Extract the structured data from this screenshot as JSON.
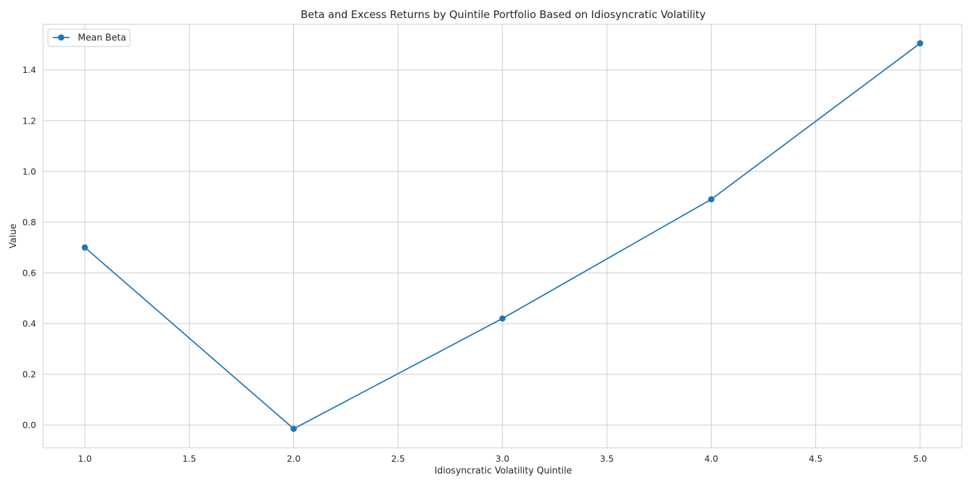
{
  "chart_data": {
    "type": "line",
    "title": "Beta and Excess Returns by Quintile Portfolio Based on Idiosyncratic Volatility",
    "xlabel": "Idiosyncratic Volatility Quintile",
    "ylabel": "Value",
    "xlim": [
      0.8,
      5.2
    ],
    "ylim": [
      -0.09,
      1.58
    ],
    "xticks": [
      "1.0",
      "1.5",
      "2.0",
      "2.5",
      "3.0",
      "3.5",
      "4.0",
      "4.5",
      "5.0"
    ],
    "yticks": [
      "0.0",
      "0.2",
      "0.4",
      "0.6",
      "0.8",
      "1.0",
      "1.2",
      "1.4"
    ],
    "grid": true,
    "legend_position": "top-left",
    "series": [
      {
        "name": "Mean Beta",
        "color": "#1f77b4",
        "marker": "circle",
        "x": [
          1,
          2,
          3,
          4,
          5
        ],
        "y": [
          0.7,
          -0.015,
          0.42,
          0.89,
          1.505
        ]
      }
    ]
  }
}
